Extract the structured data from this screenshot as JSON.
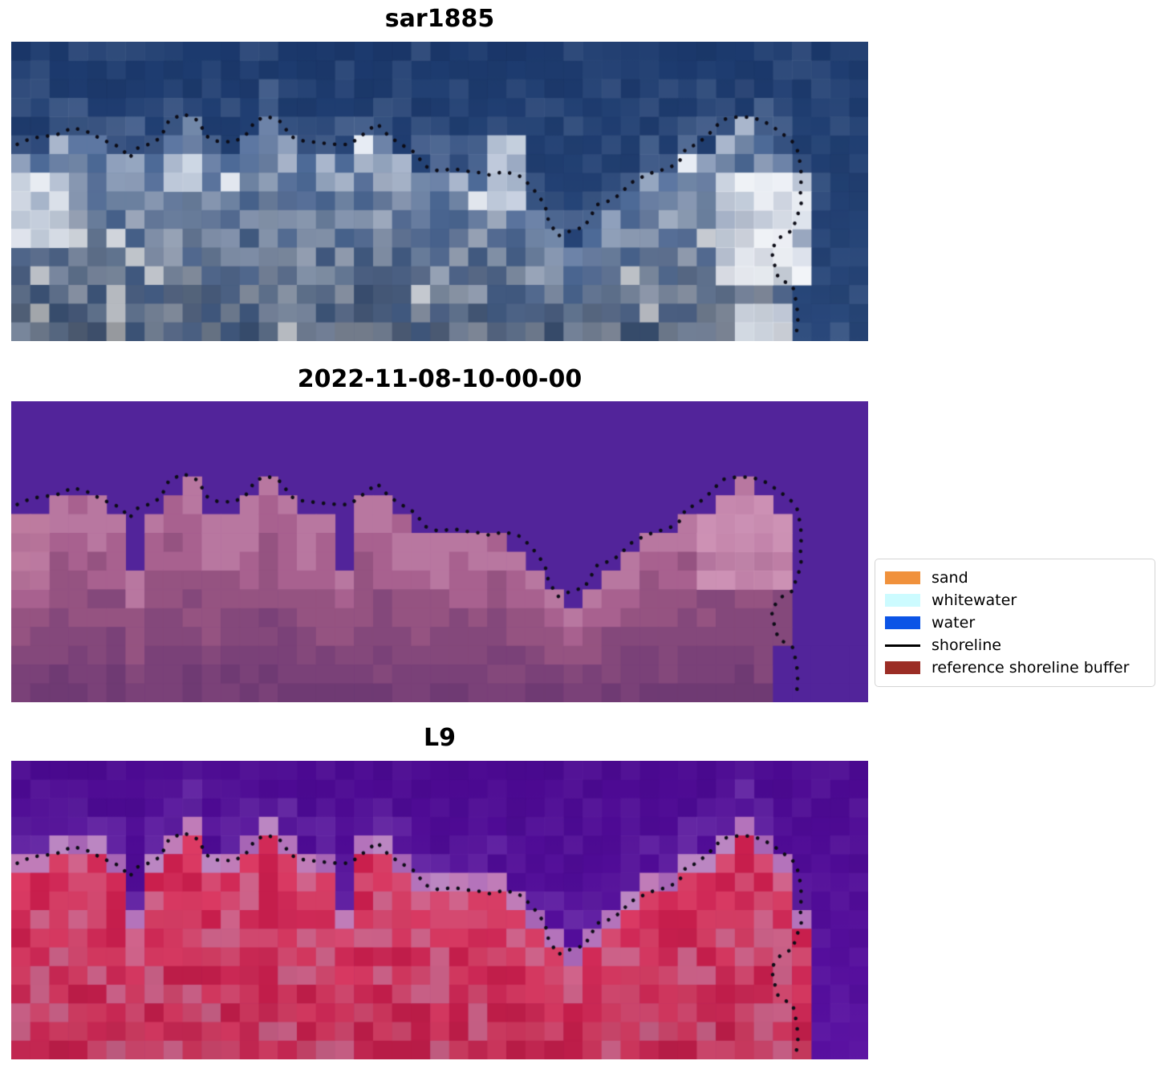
{
  "chart_data": {
    "type": "heatmap",
    "description": "Figure with three co-registered pixelated coastal image panels (SAR image, classified scene, Landsat-9 scene) each overlaid with the same dotted black reference shoreline; legend maps shoreline-detection classes to colors.",
    "grid": {
      "cols": 45,
      "rows": 16
    },
    "shoreline_color": "#0c0c16",
    "shoreline": [
      [
        0.007,
        0.343
      ],
      [
        0.024,
        0.322
      ],
      [
        0.04,
        0.316
      ],
      [
        0.053,
        0.311
      ],
      [
        0.072,
        0.287
      ],
      [
        0.091,
        0.303
      ],
      [
        0.106,
        0.327
      ],
      [
        0.12,
        0.343
      ],
      [
        0.129,
        0.357
      ],
      [
        0.138,
        0.389
      ],
      [
        0.146,
        0.357
      ],
      [
        0.16,
        0.343
      ],
      [
        0.174,
        0.322
      ],
      [
        0.184,
        0.263
      ],
      [
        0.201,
        0.241
      ],
      [
        0.218,
        0.263
      ],
      [
        0.228,
        0.316
      ],
      [
        0.24,
        0.332
      ],
      [
        0.26,
        0.335
      ],
      [
        0.274,
        0.311
      ],
      [
        0.285,
        0.263
      ],
      [
        0.299,
        0.249
      ],
      [
        0.315,
        0.268
      ],
      [
        0.326,
        0.316
      ],
      [
        0.338,
        0.33
      ],
      [
        0.361,
        0.338
      ],
      [
        0.38,
        0.343
      ],
      [
        0.395,
        0.343
      ],
      [
        0.41,
        0.311
      ],
      [
        0.427,
        0.273
      ],
      [
        0.439,
        0.311
      ],
      [
        0.448,
        0.33
      ],
      [
        0.463,
        0.357
      ],
      [
        0.471,
        0.37
      ],
      [
        0.478,
        0.397
      ],
      [
        0.483,
        0.416
      ],
      [
        0.499,
        0.432
      ],
      [
        0.516,
        0.424
      ],
      [
        0.53,
        0.432
      ],
      [
        0.546,
        0.437
      ],
      [
        0.558,
        0.445
      ],
      [
        0.575,
        0.434
      ],
      [
        0.591,
        0.445
      ],
      [
        0.597,
        0.456
      ],
      [
        0.607,
        0.485
      ],
      [
        0.614,
        0.509
      ],
      [
        0.623,
        0.547
      ],
      [
        0.627,
        0.598
      ],
      [
        0.638,
        0.649
      ],
      [
        0.654,
        0.63
      ],
      [
        0.669,
        0.619
      ],
      [
        0.684,
        0.544
      ],
      [
        0.702,
        0.528
      ],
      [
        0.712,
        0.504
      ],
      [
        0.723,
        0.472
      ],
      [
        0.733,
        0.456
      ],
      [
        0.751,
        0.434
      ],
      [
        0.766,
        0.424
      ],
      [
        0.778,
        0.405
      ],
      [
        0.783,
        0.386
      ],
      [
        0.787,
        0.357
      ],
      [
        0.8,
        0.343
      ],
      [
        0.815,
        0.306
      ],
      [
        0.83,
        0.26
      ],
      [
        0.846,
        0.252
      ],
      [
        0.863,
        0.252
      ],
      [
        0.878,
        0.265
      ],
      [
        0.896,
        0.298
      ],
      [
        0.912,
        0.335
      ],
      [
        0.917,
        0.357
      ],
      [
        0.921,
        0.41
      ],
      [
        0.922,
        0.45
      ],
      [
        0.921,
        0.504
      ],
      [
        0.922,
        0.547
      ],
      [
        0.916,
        0.59
      ],
      [
        0.912,
        0.63
      ],
      [
        0.903,
        0.643
      ],
      [
        0.897,
        0.654
      ],
      [
        0.887,
        0.694
      ],
      [
        0.89,
        0.737
      ],
      [
        0.895,
        0.788
      ],
      [
        0.912,
        0.818
      ],
      [
        0.914,
        0.839
      ],
      [
        0.917,
        0.887
      ],
      [
        0.918,
        0.933
      ],
      [
        0.916,
        0.979
      ]
    ],
    "panels": [
      {
        "title": "sar1885",
        "kind": "sar",
        "water_top": "#1d3b6f",
        "water_bottom": "#2b4a7c",
        "water_noise": 0.1,
        "edge_tint": "#6d83a8",
        "land_palette": [
          "#8fa0bc",
          "#a9b6cc",
          "#7288a9",
          "#95a6c0",
          "#5d77a2",
          "#4d6a97",
          "#6d83a8"
        ],
        "sparkle": "#e7ecf4",
        "depth_shade": 0.3,
        "land_top_rows": [
          6,
          6,
          5,
          5,
          5,
          6,
          6,
          6,
          5,
          4,
          6,
          6,
          5,
          4,
          5,
          6,
          6,
          6,
          5,
          5,
          6,
          7,
          7,
          7,
          7,
          7,
          8,
          9,
          10,
          11,
          10,
          9,
          8,
          7,
          7,
          6,
          6,
          5,
          4,
          5,
          6,
          16,
          16,
          16,
          16
        ],
        "highlights": [
          {
            "cols": [
              0,
              2
            ],
            "rows": [
              7,
              10
            ],
            "color": "#e9edf3"
          },
          {
            "cols": [
              8,
              9
            ],
            "rows": [
              6,
              7
            ],
            "color": "#cdd6e3"
          },
          {
            "cols": [
              25,
              26
            ],
            "rows": [
              5,
              8
            ],
            "color": "#c6d0df"
          },
          {
            "cols": [
              37,
              41
            ],
            "rows": [
              7,
              12
            ],
            "color": "#f3f5f9"
          },
          {
            "cols": [
              38,
              40
            ],
            "rows": [
              14,
              15
            ],
            "color": "#e2e7ef"
          }
        ]
      },
      {
        "title": "2022-11-08-10-00-00",
        "kind": "classified",
        "water_top": "#52249a",
        "water_bottom": "#52249a",
        "water_noise": 0,
        "land_palette": [
          "#b877a0",
          "#a8618f",
          "#955381",
          "#84487b",
          "#7a4178",
          "#6f3a73"
        ],
        "depth_based": true,
        "depth_shade": 0,
        "land_top_rows": [
          6,
          6,
          5,
          5,
          5,
          6,
          9,
          6,
          5,
          4,
          6,
          6,
          5,
          4,
          5,
          6,
          6,
          9,
          5,
          5,
          6,
          7,
          7,
          7,
          7,
          7,
          8,
          9,
          10,
          11,
          10,
          9,
          8,
          7,
          7,
          6,
          6,
          5,
          4,
          5,
          6,
          16,
          16,
          16,
          16
        ],
        "water_patches": [
          {
            "cols": [
              40,
              44
            ],
            "rows": [
              13,
              15
            ]
          }
        ],
        "highlights": [
          {
            "cols": [
              36,
              40
            ],
            "rows": [
              5,
              9
            ],
            "color": "#cd92b5"
          },
          {
            "cols": [
              0,
              1
            ],
            "rows": [
              6,
              9
            ],
            "color": "#bd7b9f"
          }
        ]
      },
      {
        "title": "L9",
        "kind": "l9",
        "water_top": "#4c0a92",
        "water_bottom": "#5a11a2",
        "water_noise": 0.05,
        "edge_tint": "#7e47b5",
        "land_palette": [
          "#d2648c",
          "#d84a72",
          "#d93e66",
          "#d32a58",
          "#cb1f4e",
          "#dd3a64"
        ],
        "transition_rows": 1,
        "transition_palette": [
          "#b473bb",
          "#c07cb8",
          "#a765b5",
          "#bb86c2"
        ],
        "depth_shade": 0.1,
        "land_top_rows": [
          5,
          5,
          4,
          4,
          4,
          5,
          8,
          5,
          4,
          3,
          5,
          5,
          4,
          3,
          4,
          5,
          5,
          8,
          4,
          4,
          5,
          6,
          6,
          6,
          6,
          6,
          7,
          8,
          9,
          10,
          9,
          8,
          7,
          6,
          6,
          5,
          5,
          4,
          3,
          4,
          5,
          8,
          16,
          16,
          16
        ],
        "highlights": []
      }
    ],
    "legend": {
      "items": [
        {
          "label": "sand",
          "swatch": "#f0913c",
          "type": "patch"
        },
        {
          "label": "whitewater",
          "swatch": "#ccfbff",
          "type": "patch"
        },
        {
          "label": "water",
          "swatch": "#0b54e6",
          "type": "patch"
        },
        {
          "label": "shoreline",
          "swatch": "#000000",
          "type": "line"
        },
        {
          "label": "reference shoreline buffer",
          "swatch": "#9b2d25",
          "type": "patch"
        }
      ]
    }
  }
}
